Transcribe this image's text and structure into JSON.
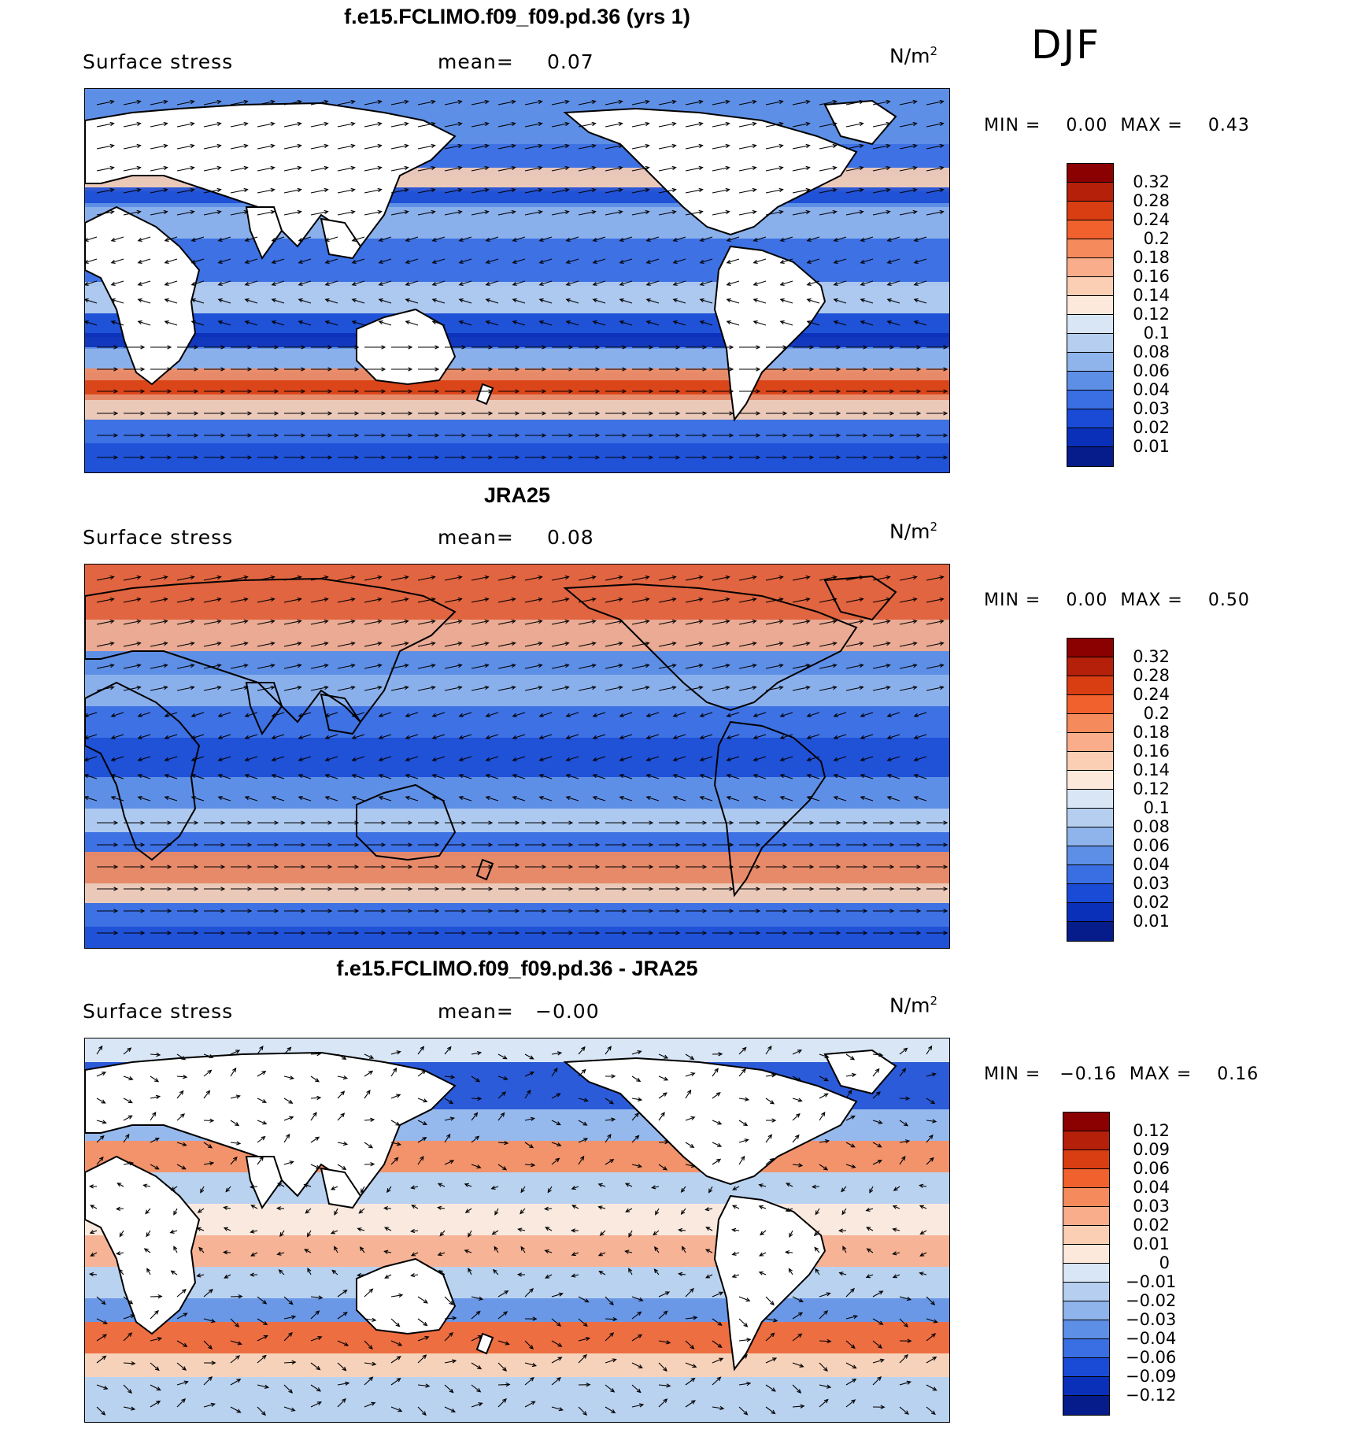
{
  "season_label": "DJF",
  "panels": [
    {
      "title": "f.e15.FCLIMO.f09_f09.pd.36 (yrs 1)",
      "field_label": "Surface stress",
      "mean_label": "mean=",
      "mean_value": "0.07",
      "units": "N/m",
      "units_sup": "2",
      "min_label": "MIN =",
      "min_value": "0.00",
      "max_label": "MAX =",
      "max_value": "0.43",
      "colorbar_levels": [
        "0.32",
        "0.28",
        "0.24",
        "0.2",
        "0.18",
        "0.16",
        "0.14",
        "0.12",
        "0.1",
        "0.08",
        "0.06",
        "0.04",
        "0.03",
        "0.02",
        "0.01"
      ],
      "colorbar_colors": [
        "#8b0000",
        "#b5200a",
        "#d93d12",
        "#f0612e",
        "#f58a5c",
        "#f9ad8b",
        "#fbcfb4",
        "#fde9dc",
        "#d8e6f6",
        "#b6cff0",
        "#8fb4ec",
        "#5e8fe6",
        "#3a6ee3",
        "#1a4bd6",
        "#0a2fb8",
        "#051c8a"
      ]
    },
    {
      "title": "JRA25",
      "field_label": "Surface stress",
      "mean_label": "mean=",
      "mean_value": "0.08",
      "units": "N/m",
      "units_sup": "2",
      "min_label": "MIN =",
      "min_value": "0.00",
      "max_label": "MAX =",
      "max_value": "0.50",
      "colorbar_levels": [
        "0.32",
        "0.28",
        "0.24",
        "0.2",
        "0.18",
        "0.16",
        "0.14",
        "0.12",
        "0.1",
        "0.08",
        "0.06",
        "0.04",
        "0.03",
        "0.02",
        "0.01"
      ],
      "colorbar_colors": [
        "#8b0000",
        "#b5200a",
        "#d93d12",
        "#f0612e",
        "#f58a5c",
        "#f9ad8b",
        "#fbcfb4",
        "#fde9dc",
        "#d8e6f6",
        "#b6cff0",
        "#8fb4ec",
        "#5e8fe6",
        "#3a6ee3",
        "#1a4bd6",
        "#0a2fb8",
        "#051c8a"
      ]
    },
    {
      "title": "f.e15.FCLIMO.f09_f09.pd.36 - JRA25",
      "field_label": "Surface stress",
      "mean_label": "mean=",
      "mean_value": "−0.00",
      "units": "N/m",
      "units_sup": "2",
      "min_label": "MIN =",
      "min_value": "−0.16",
      "max_label": "MAX =",
      "max_value": "0.16",
      "colorbar_levels": [
        "0.12",
        "0.09",
        "0.06",
        "0.04",
        "0.03",
        "0.02",
        "0.01",
        "0",
        "−0.01",
        "−0.02",
        "−0.03",
        "−0.04",
        "−0.06",
        "−0.09",
        "−0.12"
      ],
      "colorbar_colors": [
        "#8b0000",
        "#b5200a",
        "#d93d12",
        "#f0612e",
        "#f58a5c",
        "#f9ad8b",
        "#fbcfb4",
        "#fde9dc",
        "#d8e6f6",
        "#b6cff0",
        "#8fb4ec",
        "#5e8fe6",
        "#3a6ee3",
        "#1a4bd6",
        "#0a2fb8",
        "#051c8a"
      ]
    }
  ]
}
